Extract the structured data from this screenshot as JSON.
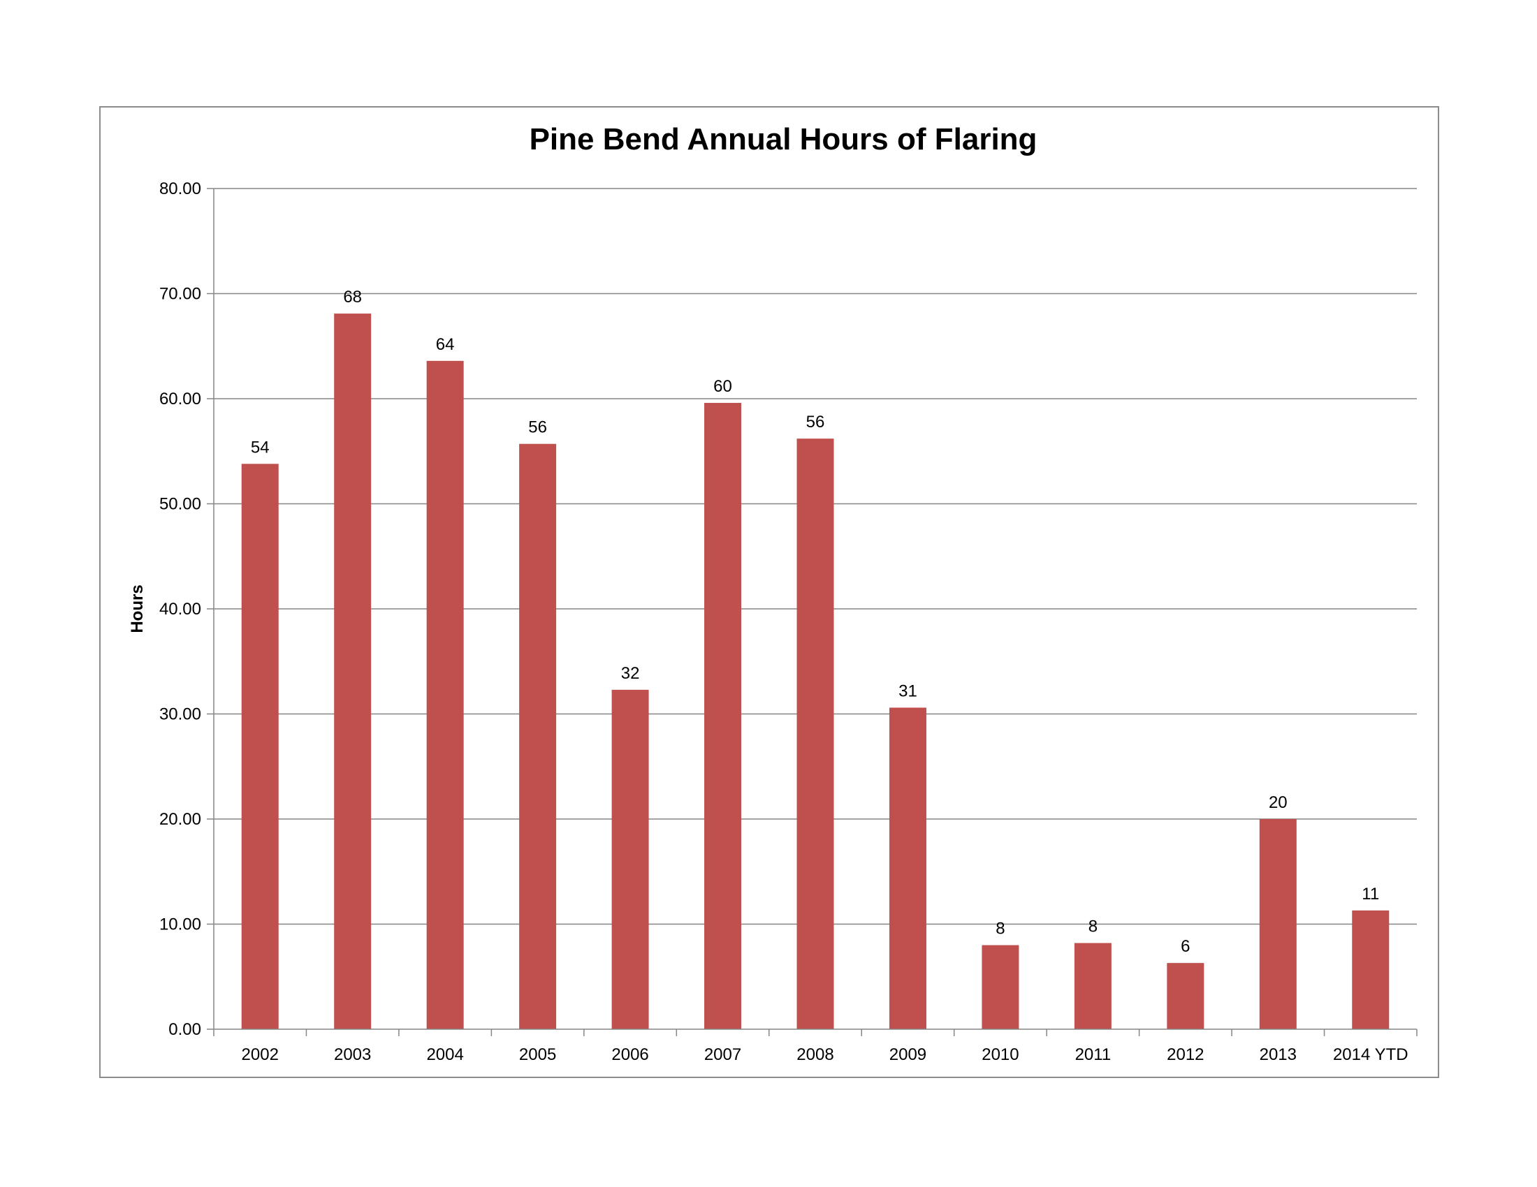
{
  "chart_data": {
    "type": "bar",
    "title": "Pine Bend Annual Hours of Flaring",
    "xlabel": "",
    "ylabel": "Hours",
    "categories": [
      "2002",
      "2003",
      "2004",
      "2005",
      "2006",
      "2007",
      "2008",
      "2009",
      "2010",
      "2011",
      "2012",
      "2013",
      "2014 YTD"
    ],
    "values": [
      53.8,
      68.1,
      63.6,
      55.7,
      32.3,
      59.6,
      56.2,
      30.6,
      8.0,
      8.2,
      6.3,
      20.0,
      11.3
    ],
    "data_labels": [
      "54",
      "68",
      "64",
      "56",
      "32",
      "60",
      "56",
      "31",
      "8",
      "8",
      "6",
      "20",
      "11"
    ],
    "ylim": [
      0,
      80
    ],
    "yticks": [
      0,
      10,
      20,
      30,
      40,
      50,
      60,
      70,
      80
    ],
    "ytick_labels": [
      "0.00",
      "10.00",
      "20.00",
      "30.00",
      "40.00",
      "50.00",
      "60.00",
      "70.00",
      "80.00"
    ],
    "grid": true,
    "legend": "none",
    "bar_color": "#c0504d",
    "grid_color": "#868686"
  }
}
